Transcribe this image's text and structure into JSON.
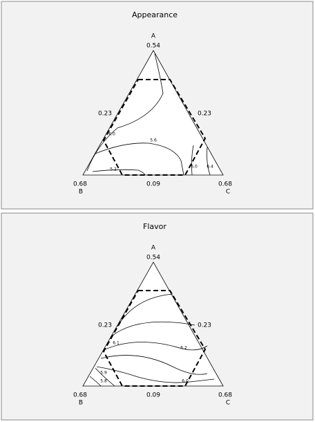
{
  "panels": [
    {
      "title": "Appearance",
      "vertices": {
        "A": "A",
        "B": "B",
        "C": "C"
      },
      "ticks": {
        "top": "0.54",
        "left": "0.23",
        "right": "0.23",
        "bottom_left": "0.68",
        "bottom_mid": "0.09",
        "bottom_right": "0.68"
      },
      "contour_labels": [
        "6.0",
        "5.6",
        "5.2",
        "6.0",
        "6.4"
      ]
    },
    {
      "title": "Flavor",
      "vertices": {
        "A": "A",
        "B": "B",
        "C": "C"
      },
      "ticks": {
        "top": "0.54",
        "left": "0.23",
        "right": "0.23",
        "bottom_left": "0.68",
        "bottom_mid": "0.09",
        "bottom_right": "0.68"
      },
      "contour_labels": [
        "6.1",
        "6.2",
        "6.0",
        "5.9",
        "5.8"
      ]
    }
  ]
}
